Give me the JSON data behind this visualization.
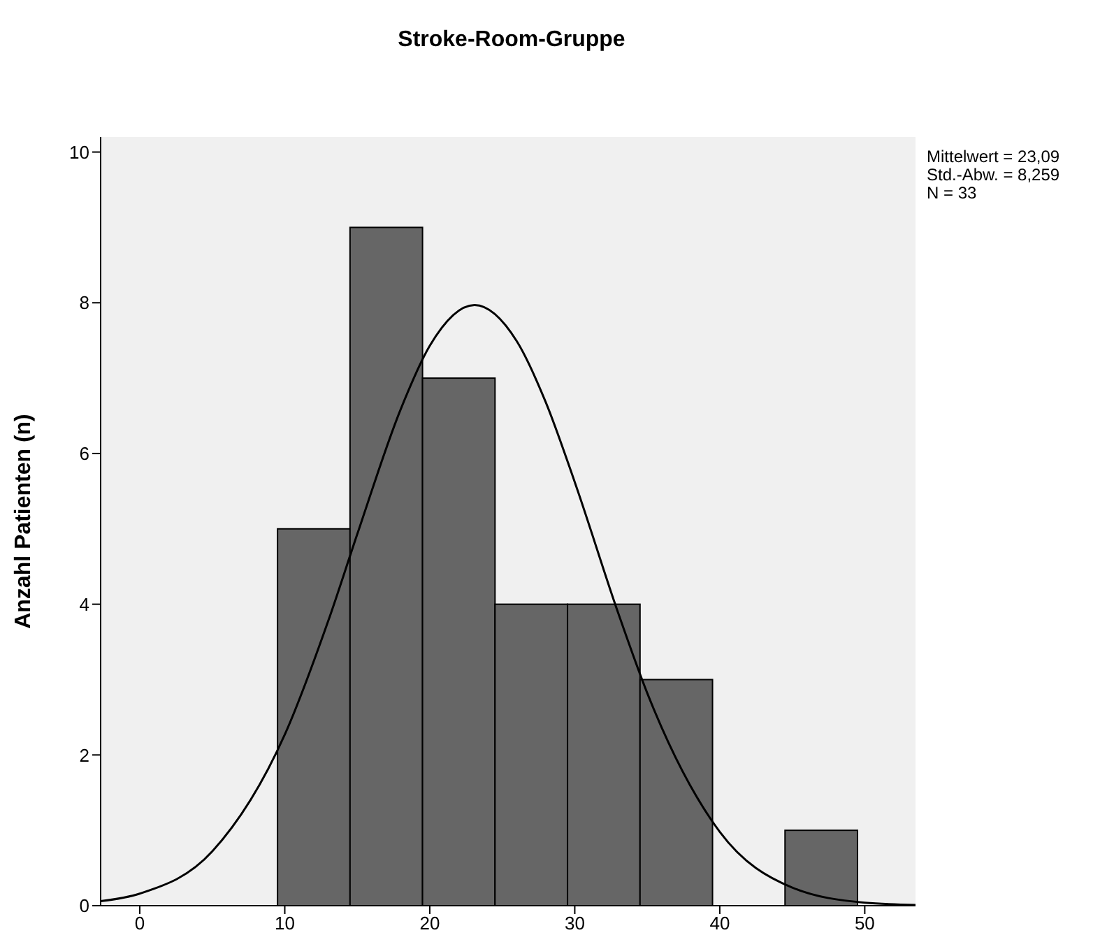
{
  "chart_data": {
    "type": "histogram",
    "title": "Stroke-Room-Gruppe",
    "ylabel": "Anzahl Patienten (n)",
    "bins": [
      9.5,
      14.5,
      19.5,
      24.5,
      29.5,
      34.5,
      39.5,
      44.5,
      49.5
    ],
    "values": [
      5,
      9,
      7,
      4,
      4,
      3,
      0,
      1
    ],
    "color": "#666666",
    "series": [
      {
        "type": "line",
        "color": "#000000",
        "x": [
          -2.7,
          0,
          5,
          10,
          13,
          15,
          18,
          20,
          23.09,
          26,
          28,
          30,
          33,
          35,
          40,
          45,
          50,
          53.5
        ],
        "values": [
          0.06,
          0.16,
          0.72,
          2.27,
          3.78,
          4.93,
          6.59,
          7.43,
          7.97,
          7.49,
          6.68,
          5.62,
          3.88,
          2.82,
          0.98,
          0.24,
          0.04,
          0.01
        ]
      }
    ],
    "xlim": [
      -2.7,
      53.5
    ],
    "xticks": [
      0,
      10,
      20,
      30,
      40,
      50
    ],
    "ylim": [
      0,
      10.2
    ],
    "yticks": [
      0,
      2,
      4,
      6,
      8,
      10
    ],
    "grid": false,
    "legend": false,
    "marker": "none",
    "line_style": "solid",
    "annotations": [
      "Mittelwert = 23,09",
      "Std.-Abw. = 8,259",
      "N = 33"
    ]
  }
}
